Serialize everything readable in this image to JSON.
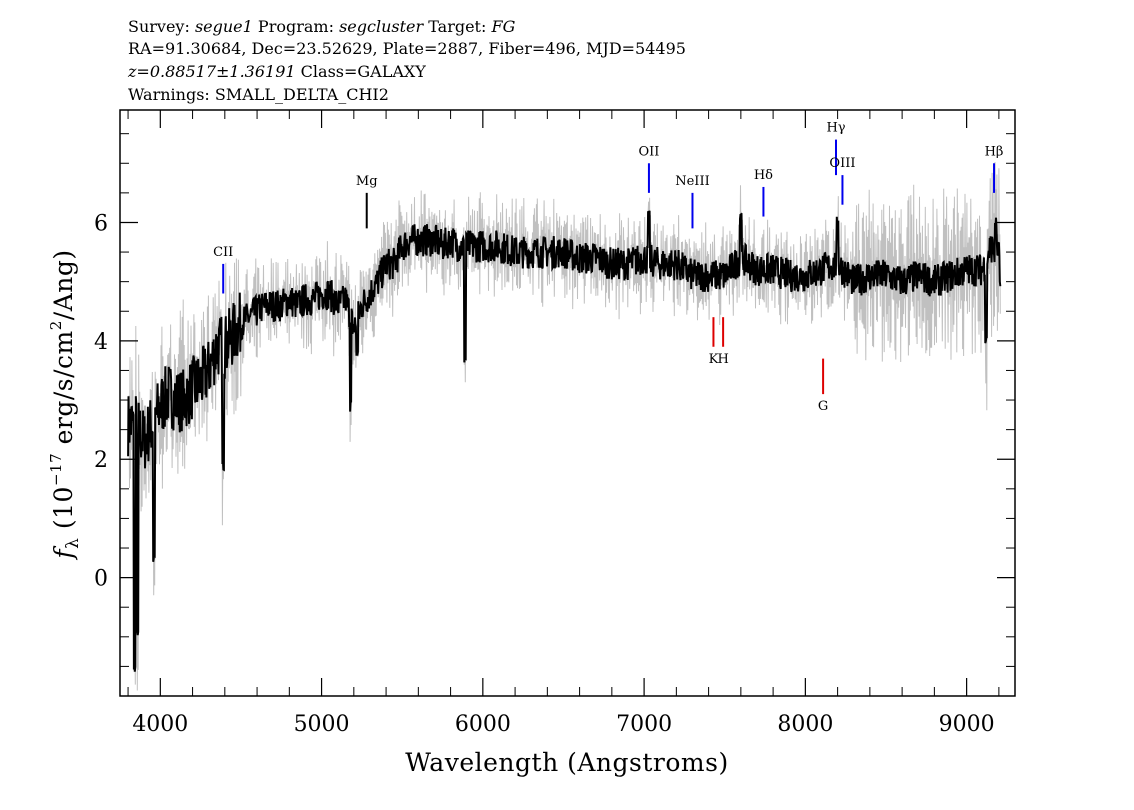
{
  "header": {
    "line1": {
      "survey_label": "Survey:",
      "survey": "segue1",
      "program_label": "Program:",
      "program": "segcluster",
      "target_label": "Target:",
      "target": "FG"
    },
    "line2": "RA=91.30684, Dec=23.52629, Plate=2887, Fiber=496, MJD=54495",
    "line3": {
      "redshift": "z=0.88517±1.36191",
      "class": "Class=GALAXY"
    },
    "line4": "Warnings: SMALL_DELTA_CHI2"
  },
  "chart_data": {
    "type": "line",
    "title": "",
    "xlabel": "Wavelength (Angstroms)",
    "ylabel": "f_λ (10^-17 erg/s/cm^2/Ang)",
    "ylabel_parts": {
      "f": "f",
      "sub": "λ",
      "pre": "(10",
      "exp": "−17",
      "mid": " erg/s/cm",
      "exp2": "2",
      "post": "/Ang)"
    },
    "xlim": [
      3750,
      9300
    ],
    "ylim": [
      -2.0,
      7.9
    ],
    "x_ticks": [
      4000,
      5000,
      6000,
      7000,
      8000,
      9000
    ],
    "x_tick_labels": [
      "4000",
      "5000",
      "6000",
      "7000",
      "8000",
      "9000"
    ],
    "y_ticks": [
      0,
      2,
      4,
      6
    ],
    "y_tick_labels": [
      "0",
      "2",
      "4",
      "6"
    ],
    "grid": false,
    "colors": {
      "flux": "#000000",
      "error_band": "#c0c0c0",
      "emission": "#0000ee",
      "absorption": "#dd0000",
      "sky": "#000000"
    },
    "series": [
      {
        "role": "flux",
        "x": [
          3800,
          3850,
          3900,
          3950,
          4000,
          4050,
          4100,
          4150,
          4200,
          4250,
          4300,
          4350,
          4400,
          4450,
          4500,
          4550,
          4600,
          4650,
          4700,
          4750,
          4800,
          4850,
          4900,
          4950,
          5000,
          5050,
          5100,
          5150,
          5200,
          5250,
          5300,
          5350,
          5400,
          5450,
          5500,
          5550,
          5600,
          5650,
          5700,
          5750,
          5800,
          5850,
          5900,
          5950,
          6000,
          6100,
          6200,
          6300,
          6400,
          6500,
          6600,
          6700,
          6800,
          6900,
          7000,
          7100,
          7200,
          7300,
          7400,
          7500,
          7600,
          7700,
          7800,
          7900,
          8000,
          8100,
          8200,
          8300,
          8400,
          8500,
          8600,
          8700,
          8800,
          8900,
          9000,
          9100,
          9150,
          9200,
          9210
        ],
        "values": [
          2.6,
          2.6,
          2.3,
          2.6,
          2.9,
          3.1,
          3.0,
          3.0,
          3.2,
          3.3,
          3.5,
          3.9,
          3.9,
          4.1,
          4.3,
          4.4,
          4.5,
          4.6,
          4.6,
          4.6,
          4.7,
          4.6,
          4.7,
          4.7,
          4.8,
          4.8,
          4.6,
          4.7,
          4.2,
          4.6,
          4.8,
          5.0,
          5.3,
          5.3,
          5.6,
          5.7,
          5.7,
          5.7,
          5.7,
          5.6,
          5.7,
          5.6,
          5.6,
          5.6,
          5.6,
          5.6,
          5.5,
          5.5,
          5.5,
          5.5,
          5.4,
          5.4,
          5.3,
          5.3,
          5.4,
          5.3,
          5.3,
          5.1,
          5.1,
          5.1,
          5.4,
          5.2,
          5.2,
          5.1,
          5.1,
          5.2,
          5.3,
          5.0,
          5.1,
          5.1,
          5.0,
          5.1,
          5.0,
          5.1,
          5.2,
          5.2,
          5.6,
          5.4,
          4.8
        ]
      }
    ],
    "features": [
      {
        "wavelength": 3840,
        "value": -1.5,
        "kind": "dip"
      },
      {
        "wavelength": 3860,
        "value": -1.0,
        "kind": "dip"
      },
      {
        "wavelength": 3960,
        "value": 0.3,
        "kind": "dip"
      },
      {
        "wavelength": 4390,
        "value": 1.9,
        "kind": "dip"
      },
      {
        "wavelength": 5180,
        "value": 2.9,
        "kind": "dip"
      },
      {
        "wavelength": 5220,
        "value": 3.8,
        "kind": "dip"
      },
      {
        "wavelength": 5890,
        "value": 3.7,
        "kind": "dip"
      },
      {
        "wavelength": 7030,
        "value": 6.1,
        "kind": "peak"
      },
      {
        "wavelength": 7600,
        "value": 6.1,
        "kind": "peak"
      },
      {
        "wavelength": 8200,
        "value": 6.0,
        "kind": "peak"
      },
      {
        "wavelength": 9180,
        "value": 6.0,
        "kind": "peak"
      },
      {
        "wavelength": 9120,
        "value": 4.0,
        "kind": "dip"
      }
    ],
    "lines": [
      {
        "label": "CII",
        "x": 4390,
        "y0": 4.8,
        "y1": 5.3,
        "kind": "emission"
      },
      {
        "label": "Mg",
        "x": 5280,
        "y0": 5.9,
        "y1": 6.5,
        "kind": "sky"
      },
      {
        "label": "OII",
        "x": 7030,
        "y0": 6.5,
        "y1": 7.0,
        "kind": "emission"
      },
      {
        "label": "NeIII",
        "x": 7300,
        "y0": 5.9,
        "y1": 6.5,
        "kind": "emission"
      },
      {
        "label": "Hδ",
        "x": 7740,
        "y0": 6.1,
        "y1": 6.6,
        "kind": "emission"
      },
      {
        "label": "Hγ",
        "x": 8190,
        "y0": 6.8,
        "y1": 7.4,
        "kind": "emission"
      },
      {
        "label": "OIII",
        "x": 8230,
        "y0": 6.3,
        "y1": 6.8,
        "kind": "emission"
      },
      {
        "label": "Hβ",
        "x": 9170,
        "y0": 6.5,
        "y1": 7.0,
        "kind": "emission"
      },
      {
        "label": "K",
        "x": 7430,
        "y0": 4.4,
        "y1": 3.9,
        "kind": "absorption",
        "below": true
      },
      {
        "label": "H",
        "x": 7490,
        "y0": 4.4,
        "y1": 3.9,
        "kind": "absorption",
        "below": true
      },
      {
        "label": "G",
        "x": 8110,
        "y0": 3.7,
        "y1": 3.1,
        "kind": "absorption",
        "below": true
      }
    ]
  }
}
